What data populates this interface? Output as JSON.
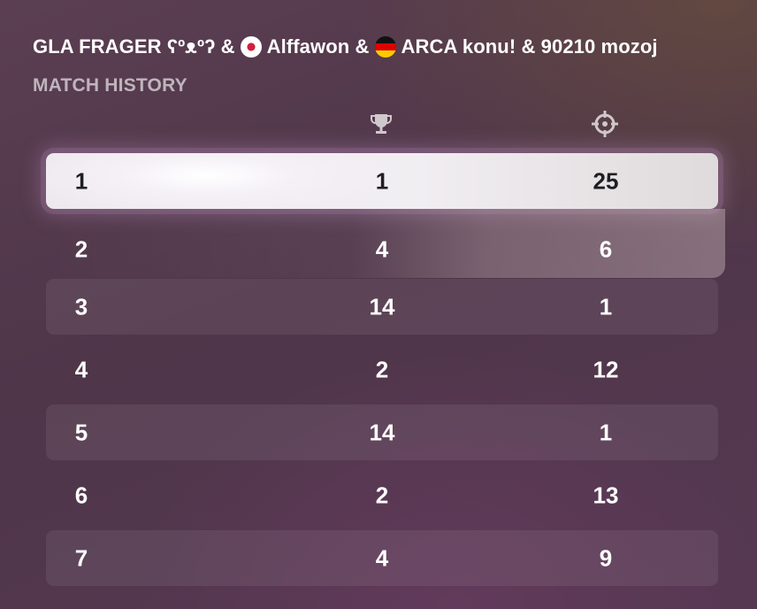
{
  "header": {
    "team_names": [
      "GLA FRAGER ʕºᴥºʔ &",
      "Alffawon &",
      "ARCA konu! & 90210 mozoj"
    ],
    "flags": [
      "japan-flag",
      "germany-flag"
    ],
    "subtitle": "MATCH HISTORY"
  },
  "columns": {
    "icons": [
      "trophy-icon",
      "crosshair-icon"
    ]
  },
  "matches": [
    {
      "match": "1",
      "placement": "1",
      "kills": "25",
      "state": "selected"
    },
    {
      "match": "2",
      "placement": "4",
      "kills": "6",
      "state": "hovered"
    },
    {
      "match": "3",
      "placement": "14",
      "kills": "1",
      "state": "normal"
    },
    {
      "match": "4",
      "placement": "2",
      "kills": "12",
      "state": "normal"
    },
    {
      "match": "5",
      "placement": "14",
      "kills": "1",
      "state": "normal"
    },
    {
      "match": "6",
      "placement": "2",
      "kills": "13",
      "state": "normal"
    },
    {
      "match": "7",
      "placement": "4",
      "kills": "9",
      "state": "normal"
    }
  ],
  "colors": {
    "selected_row_text": "#1e1e22",
    "text": "#ffffff",
    "muted_text": "#c0b0bb",
    "icon": "#cfc8cc"
  }
}
